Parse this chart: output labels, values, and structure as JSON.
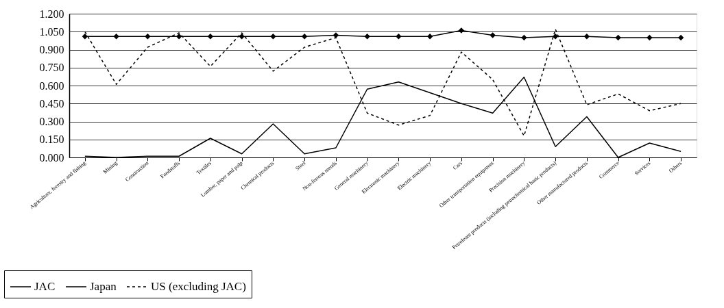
{
  "chart_data": {
    "type": "line",
    "categories": [
      "Agriculture, forestry and fishing",
      "Mining",
      "Construction",
      "Foodstuffs",
      "Textiles",
      "Lumber, paper and pulp",
      "Chemical products",
      "Steel",
      "Non-ferrous metals",
      "General machinery",
      "Electronic machinery",
      "Electric machinery",
      "Cars",
      "Other transportation equipment",
      "Precision machinery",
      "Petroleum products (including petrochemical basic products)",
      "Other manufactured products",
      "Commerce",
      "Services",
      "Others"
    ],
    "series": [
      {
        "name": "JAC",
        "color": "#000000",
        "marker": "diamond",
        "line_style": "solid",
        "values": [
          1.01,
          1.01,
          1.01,
          1.01,
          1.01,
          1.01,
          1.01,
          1.01,
          1.02,
          1.01,
          1.01,
          1.01,
          1.06,
          1.02,
          1.0,
          1.01,
          1.01,
          1.0,
          1.0,
          1.0
        ]
      },
      {
        "name": "Japan",
        "color": "#000000",
        "marker": "none",
        "line_style": "solid",
        "values": [
          0.01,
          0.0,
          0.01,
          0.01,
          0.16,
          0.03,
          0.28,
          0.03,
          0.08,
          0.57,
          0.63,
          0.54,
          0.45,
          0.37,
          0.67,
          0.09,
          0.34,
          0.0,
          0.12,
          0.05
        ]
      },
      {
        "name": "US (excluding JAC)",
        "color": "#000000",
        "marker": "none",
        "line_style": "dashed",
        "values": [
          1.05,
          0.61,
          0.92,
          1.04,
          0.76,
          1.04,
          0.72,
          0.92,
          1.0,
          0.37,
          0.27,
          0.35,
          0.88,
          0.65,
          0.18,
          1.07,
          0.44,
          0.53,
          0.39,
          0.45
        ]
      }
    ],
    "ylim": [
      0,
      1.2
    ],
    "yticks": [
      {
        "value": 0,
        "label": "0.000"
      },
      {
        "value": 0.15,
        "label": "0.150"
      },
      {
        "value": 0.3,
        "label": "0.300"
      },
      {
        "value": 0.45,
        "label": "0.450"
      },
      {
        "value": 0.6,
        "label": "0.600"
      },
      {
        "value": 0.75,
        "label": "0.750"
      },
      {
        "value": 0.9,
        "label": "0.900"
      },
      {
        "value": 1.05,
        "label": "1.050"
      },
      {
        "value": 1.2,
        "label": "1.200"
      }
    ],
    "grid": "y",
    "legend": "bottom left"
  }
}
